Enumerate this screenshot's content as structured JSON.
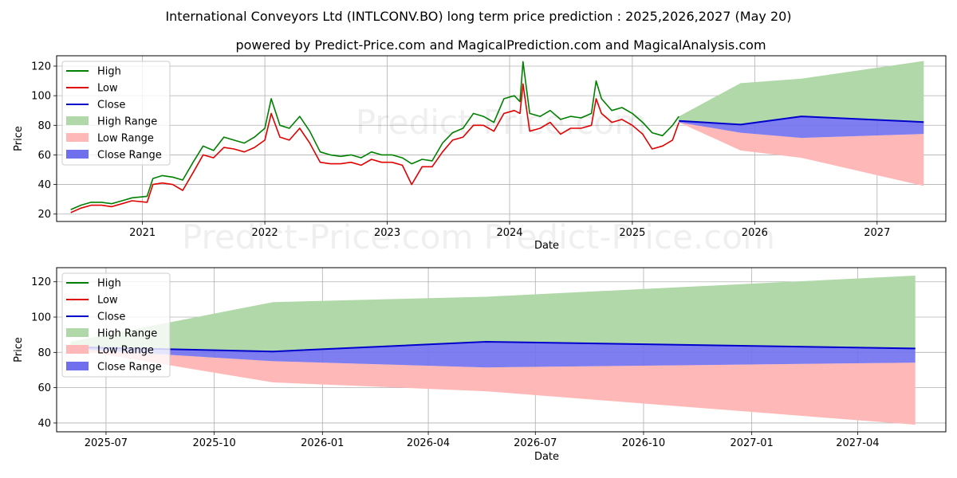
{
  "title": "International Conveyors Ltd (INTLCONV.BO) long term price prediction : 2025,2026,2027 (May 20)",
  "subtitle": "powered by Predict-Price.com and MagicalPrediction.com and MagicalAnalysis.com",
  "watermark": "Predict-Price.com",
  "colors": {
    "high": "#008000",
    "low": "#e00000",
    "close": "#0000cc",
    "high_range": "#b0d8a8",
    "low_range": "#ffb8b8",
    "close_range": "#7070ee",
    "grid": "#b0b0b0"
  },
  "legend": [
    "High",
    "Low",
    "Close",
    "High Range",
    "Low Range",
    "Close Range"
  ],
  "chart_data": [
    {
      "type": "line",
      "panel": "top",
      "xlabel": "Date",
      "ylabel": "Price",
      "xlim": [
        "2020-04-20",
        "2027-07-25"
      ],
      "ylim": [
        15,
        127
      ],
      "xticks": [
        {
          "date": "2021-01-01",
          "label": "2021"
        },
        {
          "date": "2022-01-01",
          "label": "2022"
        },
        {
          "date": "2023-01-01",
          "label": "2023"
        },
        {
          "date": "2024-01-01",
          "label": "2024"
        },
        {
          "date": "2025-01-01",
          "label": "2025"
        },
        {
          "date": "2026-01-01",
          "label": "2026"
        },
        {
          "date": "2027-01-01",
          "label": "2027"
        }
      ],
      "yticks": [
        20,
        40,
        60,
        80,
        100,
        120
      ],
      "grid": true,
      "legend_position": "upper-left",
      "series": [
        {
          "name": "High",
          "kind": "line",
          "points": [
            [
              "2020-06-01",
              23
            ],
            [
              "2020-07-01",
              26
            ],
            [
              "2020-08-01",
              28
            ],
            [
              "2020-09-01",
              28
            ],
            [
              "2020-10-01",
              27
            ],
            [
              "2020-11-01",
              29
            ],
            [
              "2020-12-01",
              31
            ],
            [
              "2021-01-15",
              32
            ],
            [
              "2021-02-01",
              44
            ],
            [
              "2021-03-01",
              46
            ],
            [
              "2021-04-01",
              45
            ],
            [
              "2021-05-01",
              43
            ],
            [
              "2021-06-01",
              55
            ],
            [
              "2021-07-01",
              66
            ],
            [
              "2021-08-01",
              63
            ],
            [
              "2021-09-01",
              72
            ],
            [
              "2021-10-01",
              70
            ],
            [
              "2021-11-01",
              68
            ],
            [
              "2021-12-01",
              72
            ],
            [
              "2022-01-01",
              78
            ],
            [
              "2022-01-20",
              98
            ],
            [
              "2022-02-15",
              80
            ],
            [
              "2022-03-15",
              78
            ],
            [
              "2022-04-15",
              86
            ],
            [
              "2022-05-15",
              76
            ],
            [
              "2022-06-15",
              62
            ],
            [
              "2022-07-15",
              60
            ],
            [
              "2022-08-15",
              59
            ],
            [
              "2022-09-15",
              60
            ],
            [
              "2022-10-15",
              58
            ],
            [
              "2022-11-15",
              62
            ],
            [
              "2022-12-15",
              60
            ],
            [
              "2023-01-15",
              60
            ],
            [
              "2023-02-15",
              58
            ],
            [
              "2023-03-15",
              54
            ],
            [
              "2023-04-15",
              57
            ],
            [
              "2023-05-15",
              56
            ],
            [
              "2023-06-15",
              68
            ],
            [
              "2023-07-15",
              75
            ],
            [
              "2023-08-15",
              78
            ],
            [
              "2023-09-15",
              88
            ],
            [
              "2023-10-15",
              86
            ],
            [
              "2023-11-15",
              82
            ],
            [
              "2023-12-15",
              98
            ],
            [
              "2024-01-15",
              100
            ],
            [
              "2024-02-01",
              96
            ],
            [
              "2024-02-10",
              123
            ],
            [
              "2024-03-01",
              88
            ],
            [
              "2024-04-01",
              86
            ],
            [
              "2024-05-01",
              90
            ],
            [
              "2024-06-01",
              84
            ],
            [
              "2024-07-01",
              86
            ],
            [
              "2024-08-01",
              85
            ],
            [
              "2024-09-01",
              88
            ],
            [
              "2024-09-15",
              110
            ],
            [
              "2024-10-01",
              98
            ],
            [
              "2024-11-01",
              90
            ],
            [
              "2024-12-01",
              92
            ],
            [
              "2025-01-01",
              88
            ],
            [
              "2025-02-01",
              82
            ],
            [
              "2025-03-01",
              75
            ],
            [
              "2025-04-01",
              73
            ],
            [
              "2025-05-01",
              80
            ],
            [
              "2025-05-20",
              86
            ]
          ]
        },
        {
          "name": "Low",
          "kind": "line",
          "points": [
            [
              "2020-06-01",
              21
            ],
            [
              "2020-07-01",
              24
            ],
            [
              "2020-08-01",
              26
            ],
            [
              "2020-09-01",
              26
            ],
            [
              "2020-10-01",
              25
            ],
            [
              "2020-11-01",
              27
            ],
            [
              "2020-12-01",
              29
            ],
            [
              "2021-01-15",
              28
            ],
            [
              "2021-02-01",
              40
            ],
            [
              "2021-03-01",
              41
            ],
            [
              "2021-04-01",
              40
            ],
            [
              "2021-05-01",
              36
            ],
            [
              "2021-06-01",
              48
            ],
            [
              "2021-07-01",
              60
            ],
            [
              "2021-08-01",
              58
            ],
            [
              "2021-09-01",
              65
            ],
            [
              "2021-10-01",
              64
            ],
            [
              "2021-11-01",
              62
            ],
            [
              "2021-12-01",
              65
            ],
            [
              "2022-01-01",
              70
            ],
            [
              "2022-01-20",
              88
            ],
            [
              "2022-02-15",
              72
            ],
            [
              "2022-03-15",
              70
            ],
            [
              "2022-04-15",
              78
            ],
            [
              "2022-05-15",
              68
            ],
            [
              "2022-06-15",
              55
            ],
            [
              "2022-07-15",
              54
            ],
            [
              "2022-08-15",
              54
            ],
            [
              "2022-09-15",
              55
            ],
            [
              "2022-10-15",
              53
            ],
            [
              "2022-11-15",
              57
            ],
            [
              "2022-12-15",
              55
            ],
            [
              "2023-01-15",
              55
            ],
            [
              "2023-02-15",
              53
            ],
            [
              "2023-03-15",
              40
            ],
            [
              "2023-04-15",
              52
            ],
            [
              "2023-05-15",
              52
            ],
            [
              "2023-06-15",
              62
            ],
            [
              "2023-07-15",
              70
            ],
            [
              "2023-08-15",
              72
            ],
            [
              "2023-09-15",
              80
            ],
            [
              "2023-10-15",
              80
            ],
            [
              "2023-11-15",
              76
            ],
            [
              "2023-12-15",
              88
            ],
            [
              "2024-01-15",
              90
            ],
            [
              "2024-02-01",
              88
            ],
            [
              "2024-02-10",
              108
            ],
            [
              "2024-03-01",
              76
            ],
            [
              "2024-04-01",
              78
            ],
            [
              "2024-05-01",
              82
            ],
            [
              "2024-06-01",
              74
            ],
            [
              "2024-07-01",
              78
            ],
            [
              "2024-08-01",
              78
            ],
            [
              "2024-09-01",
              80
            ],
            [
              "2024-09-15",
              98
            ],
            [
              "2024-10-01",
              88
            ],
            [
              "2024-11-01",
              82
            ],
            [
              "2024-12-01",
              84
            ],
            [
              "2025-01-01",
              80
            ],
            [
              "2025-02-01",
              74
            ],
            [
              "2025-03-01",
              64
            ],
            [
              "2025-04-01",
              66
            ],
            [
              "2025-05-01",
              70
            ],
            [
              "2025-05-20",
              82
            ]
          ]
        },
        {
          "name": "Close",
          "kind": "line",
          "points": [
            [
              "2025-05-20",
              83
            ],
            [
              "2025-11-20",
              80.5
            ],
            [
              "2026-05-20",
              86
            ],
            [
              "2027-05-20",
              82.2
            ]
          ]
        },
        {
          "name": "High Range",
          "kind": "band",
          "upper": [
            [
              "2025-05-20",
              86
            ],
            [
              "2025-11-20",
              108.5
            ],
            [
              "2026-05-20",
              111.5
            ],
            [
              "2027-05-20",
              123.5
            ]
          ],
          "lower": [
            [
              "2025-05-20",
              83
            ],
            [
              "2025-11-20",
              80.5
            ],
            [
              "2026-05-20",
              86
            ],
            [
              "2027-05-20",
              82.2
            ]
          ]
        },
        {
          "name": "Low Range",
          "kind": "band",
          "upper": [
            [
              "2025-05-20",
              82
            ],
            [
              "2025-11-20",
              75
            ],
            [
              "2026-05-20",
              71.5
            ],
            [
              "2027-05-20",
              74.2
            ]
          ],
          "lower": [
            [
              "2025-05-20",
              82
            ],
            [
              "2025-11-20",
              63
            ],
            [
              "2026-05-20",
              58
            ],
            [
              "2027-05-20",
              39
            ]
          ]
        },
        {
          "name": "Close Range",
          "kind": "band",
          "upper": [
            [
              "2025-05-20",
              83
            ],
            [
              "2025-11-20",
              80.5
            ],
            [
              "2026-05-20",
              86
            ],
            [
              "2027-05-20",
              82.2
            ]
          ],
          "lower": [
            [
              "2025-05-20",
              82
            ],
            [
              "2025-11-20",
              75
            ],
            [
              "2026-05-20",
              71.5
            ],
            [
              "2027-05-20",
              74.2
            ]
          ]
        }
      ]
    },
    {
      "type": "line",
      "panel": "bottom",
      "xlabel": "Date",
      "ylabel": "Price",
      "xlim": [
        "2025-05-20",
        "2027-06-15"
      ],
      "ylim": [
        35,
        128
      ],
      "xticks": [
        {
          "date": "2025-07-01",
          "label": "2025-07"
        },
        {
          "date": "2025-10-01",
          "label": "2025-10"
        },
        {
          "date": "2026-01-01",
          "label": "2026-01"
        },
        {
          "date": "2026-04-01",
          "label": "2026-04"
        },
        {
          "date": "2026-07-01",
          "label": "2026-07"
        },
        {
          "date": "2026-10-01",
          "label": "2026-10"
        },
        {
          "date": "2027-01-01",
          "label": "2027-01"
        },
        {
          "date": "2027-04-01",
          "label": "2027-04"
        }
      ],
      "yticks": [
        40,
        60,
        80,
        100,
        120
      ],
      "grid": true,
      "legend_position": "upper-left",
      "series": [
        {
          "name": "Close",
          "kind": "line",
          "points": [
            [
              "2025-06-01",
              83
            ],
            [
              "2025-11-20",
              80.5
            ],
            [
              "2026-05-20",
              86
            ],
            [
              "2027-05-20",
              82.2
            ]
          ]
        },
        {
          "name": "High Range",
          "kind": "band",
          "upper": [
            [
              "2025-06-01",
              86
            ],
            [
              "2025-11-20",
              108.5
            ],
            [
              "2026-05-20",
              111.5
            ],
            [
              "2027-05-20",
              123.5
            ]
          ],
          "lower": [
            [
              "2025-06-01",
              83
            ],
            [
              "2025-11-20",
              80.5
            ],
            [
              "2026-05-20",
              86
            ],
            [
              "2027-05-20",
              82.2
            ]
          ]
        },
        {
          "name": "Low Range",
          "kind": "band",
          "upper": [
            [
              "2025-06-01",
              82
            ],
            [
              "2025-11-20",
              75
            ],
            [
              "2026-05-20",
              71.5
            ],
            [
              "2027-05-20",
              74.2
            ]
          ],
          "lower": [
            [
              "2025-06-01",
              82
            ],
            [
              "2025-11-20",
              63
            ],
            [
              "2026-05-20",
              58
            ],
            [
              "2027-05-20",
              39
            ]
          ]
        },
        {
          "name": "Close Range",
          "kind": "band",
          "upper": [
            [
              "2025-06-01",
              83
            ],
            [
              "2025-11-20",
              80.5
            ],
            [
              "2026-05-20",
              86
            ],
            [
              "2027-05-20",
              82.2
            ]
          ],
          "lower": [
            [
              "2025-06-01",
              82
            ],
            [
              "2025-11-20",
              75
            ],
            [
              "2026-05-20",
              71.5
            ],
            [
              "2027-05-20",
              74.2
            ]
          ]
        }
      ]
    }
  ]
}
